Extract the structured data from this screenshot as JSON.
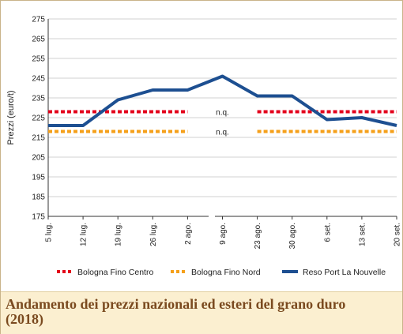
{
  "caption": {
    "title": "Andamento dei prezzi nazionali ed esteri del grano duro (2018)"
  },
  "chart_data": {
    "type": "line",
    "ylabel": "Prezzi (euro/t)",
    "xlabel": "",
    "ylim": [
      175,
      275
    ],
    "yticks": [
      175,
      185,
      195,
      205,
      215,
      225,
      235,
      245,
      255,
      265,
      275
    ],
    "categories": [
      "5 lug.",
      "12 lug.",
      "19 lug.",
      "26 lug.",
      "2 ago.",
      "9 ago.",
      "23 ago.",
      "30 ago.",
      "6 set.",
      "13 set.",
      "20 set."
    ],
    "grid": "horizontal",
    "legend_position": "bottom",
    "series": [
      {
        "name": "Bologna Fino Centro",
        "color": "#e3001b",
        "style": "dotted",
        "values": [
          228,
          228,
          228,
          228,
          228,
          null,
          228,
          228,
          228,
          228,
          228
        ]
      },
      {
        "name": "Bologna Fino Nord",
        "color": "#f5a01a",
        "style": "dotted",
        "values": [
          218,
          218,
          218,
          218,
          218,
          null,
          218,
          218,
          218,
          218,
          218
        ]
      },
      {
        "name": "Reso Port La Nouvelle",
        "color": "#1d4f91",
        "style": "solid",
        "values": [
          221,
          221,
          234,
          239,
          239,
          246,
          236,
          236,
          224,
          225,
          221
        ]
      }
    ],
    "annotations": [
      "n.q.",
      "n.q."
    ]
  }
}
